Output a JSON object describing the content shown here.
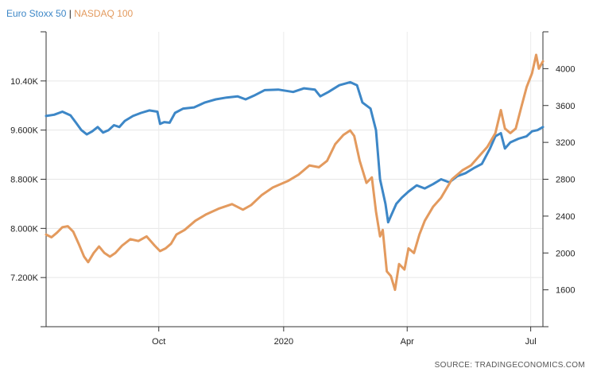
{
  "legend": {
    "series1": "Euro Stoxx 50",
    "separator": "|",
    "series2": "NASDAQ 100"
  },
  "source": "SOURCE: TRADINGECONOMICS.COM",
  "chart_data": {
    "type": "line",
    "x_ticks": [
      {
        "label": "Oct",
        "date": "2019-10-01"
      },
      {
        "label": "2020",
        "date": "2020-01-01"
      },
      {
        "label": "Apr",
        "date": "2020-04-01"
      },
      {
        "label": "Jul",
        "date": "2020-07-01"
      }
    ],
    "x_range": [
      "2019-07-10",
      "2020-07-10"
    ],
    "left_axis": {
      "range": [
        6400,
        11200
      ],
      "ticks": [
        7200,
        8000,
        8800,
        9600,
        10400
      ],
      "tick_labels": [
        "7.200K",
        "8.000K",
        "8.800K",
        "9.600K",
        "10.40K"
      ]
    },
    "right_axis": {
      "range": [
        1200,
        4400
      ],
      "ticks": [
        1600,
        2000,
        2400,
        2800,
        3200,
        3600,
        4000
      ],
      "tick_labels": [
        "1600",
        "2000",
        "2400",
        "2800",
        "3200",
        "3600",
        "4000"
      ]
    },
    "grid": true,
    "series": [
      {
        "name": "Euro Stoxx 50",
        "axis": "left",
        "color": "#3d87c7",
        "points": [
          [
            "2019-07-10",
            9830
          ],
          [
            "2019-07-16",
            9850
          ],
          [
            "2019-07-22",
            9900
          ],
          [
            "2019-07-28",
            9840
          ],
          [
            "2019-08-01",
            9720
          ],
          [
            "2019-08-05",
            9600
          ],
          [
            "2019-08-09",
            9530
          ],
          [
            "2019-08-13",
            9580
          ],
          [
            "2019-08-17",
            9650
          ],
          [
            "2019-08-21",
            9560
          ],
          [
            "2019-08-25",
            9600
          ],
          [
            "2019-08-29",
            9680
          ],
          [
            "2019-09-02",
            9650
          ],
          [
            "2019-09-06",
            9750
          ],
          [
            "2019-09-12",
            9830
          ],
          [
            "2019-09-18",
            9880
          ],
          [
            "2019-09-24",
            9920
          ],
          [
            "2019-09-30",
            9900
          ],
          [
            "2019-10-02",
            9700
          ],
          [
            "2019-10-05",
            9730
          ],
          [
            "2019-10-09",
            9720
          ],
          [
            "2019-10-13",
            9880
          ],
          [
            "2019-10-19",
            9950
          ],
          [
            "2019-10-27",
            9970
          ],
          [
            "2019-11-04",
            10050
          ],
          [
            "2019-11-12",
            10100
          ],
          [
            "2019-11-20",
            10130
          ],
          [
            "2019-11-28",
            10150
          ],
          [
            "2019-12-04",
            10100
          ],
          [
            "2019-12-10",
            10160
          ],
          [
            "2019-12-18",
            10250
          ],
          [
            "2019-12-28",
            10260
          ],
          [
            "2020-01-08",
            10220
          ],
          [
            "2020-01-16",
            10280
          ],
          [
            "2020-01-24",
            10260
          ],
          [
            "2020-01-28",
            10150
          ],
          [
            "2020-02-03",
            10220
          ],
          [
            "2020-02-11",
            10330
          ],
          [
            "2020-02-19",
            10380
          ],
          [
            "2020-02-24",
            10330
          ],
          [
            "2020-02-28",
            10050
          ],
          [
            "2020-03-05",
            9950
          ],
          [
            "2020-03-09",
            9600
          ],
          [
            "2020-03-12",
            8800
          ],
          [
            "2020-03-16",
            8400
          ],
          [
            "2020-03-18",
            8100
          ],
          [
            "2020-03-20",
            8200
          ],
          [
            "2020-03-24",
            8400
          ],
          [
            "2020-03-28",
            8500
          ],
          [
            "2020-04-02",
            8600
          ],
          [
            "2020-04-08",
            8700
          ],
          [
            "2020-04-14",
            8650
          ],
          [
            "2020-04-20",
            8720
          ],
          [
            "2020-04-26",
            8800
          ],
          [
            "2020-05-02",
            8750
          ],
          [
            "2020-05-08",
            8850
          ],
          [
            "2020-05-14",
            8900
          ],
          [
            "2020-05-20",
            8980
          ],
          [
            "2020-05-26",
            9050
          ],
          [
            "2020-06-01",
            9300
          ],
          [
            "2020-06-05",
            9500
          ],
          [
            "2020-06-09",
            9550
          ],
          [
            "2020-06-12",
            9300
          ],
          [
            "2020-06-16",
            9400
          ],
          [
            "2020-06-22",
            9460
          ],
          [
            "2020-06-28",
            9500
          ],
          [
            "2020-07-02",
            9580
          ],
          [
            "2020-07-06",
            9600
          ],
          [
            "2020-07-10",
            9650
          ]
        ]
      },
      {
        "name": "NASDAQ 100",
        "axis": "right",
        "color": "#e39a5e",
        "points": [
          [
            "2019-07-10",
            2200
          ],
          [
            "2019-07-14",
            2170
          ],
          [
            "2019-07-18",
            2220
          ],
          [
            "2019-07-22",
            2280
          ],
          [
            "2019-07-26",
            2290
          ],
          [
            "2019-07-30",
            2230
          ],
          [
            "2019-08-03",
            2100
          ],
          [
            "2019-08-07",
            1960
          ],
          [
            "2019-08-10",
            1900
          ],
          [
            "2019-08-14",
            2000
          ],
          [
            "2019-08-18",
            2070
          ],
          [
            "2019-08-22",
            2000
          ],
          [
            "2019-08-26",
            1960
          ],
          [
            "2019-08-30",
            2000
          ],
          [
            "2019-09-04",
            2080
          ],
          [
            "2019-09-10",
            2150
          ],
          [
            "2019-09-16",
            2130
          ],
          [
            "2019-09-22",
            2180
          ],
          [
            "2019-09-28",
            2080
          ],
          [
            "2019-10-02",
            2020
          ],
          [
            "2019-10-06",
            2050
          ],
          [
            "2019-10-10",
            2100
          ],
          [
            "2019-10-14",
            2200
          ],
          [
            "2019-10-20",
            2250
          ],
          [
            "2019-10-28",
            2350
          ],
          [
            "2019-11-05",
            2420
          ],
          [
            "2019-11-14",
            2480
          ],
          [
            "2019-11-24",
            2530
          ],
          [
            "2019-12-02",
            2470
          ],
          [
            "2019-12-08",
            2520
          ],
          [
            "2019-12-16",
            2630
          ],
          [
            "2019-12-24",
            2710
          ],
          [
            "2020-01-04",
            2780
          ],
          [
            "2020-01-12",
            2850
          ],
          [
            "2020-01-20",
            2950
          ],
          [
            "2020-01-27",
            2930
          ],
          [
            "2020-02-02",
            3000
          ],
          [
            "2020-02-08",
            3180
          ],
          [
            "2020-02-14",
            3280
          ],
          [
            "2020-02-19",
            3330
          ],
          [
            "2020-02-22",
            3270
          ],
          [
            "2020-02-26",
            3000
          ],
          [
            "2020-03-02",
            2760
          ],
          [
            "2020-03-06",
            2820
          ],
          [
            "2020-03-09",
            2450
          ],
          [
            "2020-03-12",
            2180
          ],
          [
            "2020-03-14",
            2250
          ],
          [
            "2020-03-17",
            1800
          ],
          [
            "2020-03-20",
            1750
          ],
          [
            "2020-03-23",
            1600
          ],
          [
            "2020-03-26",
            1880
          ],
          [
            "2020-03-30",
            1820
          ],
          [
            "2020-04-02",
            2050
          ],
          [
            "2020-04-06",
            2000
          ],
          [
            "2020-04-10",
            2200
          ],
          [
            "2020-04-14",
            2350
          ],
          [
            "2020-04-20",
            2500
          ],
          [
            "2020-04-26",
            2600
          ],
          [
            "2020-05-04",
            2800
          ],
          [
            "2020-05-12",
            2900
          ],
          [
            "2020-05-18",
            2950
          ],
          [
            "2020-05-24",
            3050
          ],
          [
            "2020-05-30",
            3150
          ],
          [
            "2020-06-05",
            3300
          ],
          [
            "2020-06-09",
            3550
          ],
          [
            "2020-06-12",
            3350
          ],
          [
            "2020-06-16",
            3300
          ],
          [
            "2020-06-20",
            3350
          ],
          [
            "2020-06-24",
            3580
          ],
          [
            "2020-06-28",
            3800
          ],
          [
            "2020-07-02",
            3950
          ],
          [
            "2020-07-05",
            4150
          ],
          [
            "2020-07-07",
            4000
          ],
          [
            "2020-07-10",
            4080
          ]
        ]
      }
    ]
  }
}
